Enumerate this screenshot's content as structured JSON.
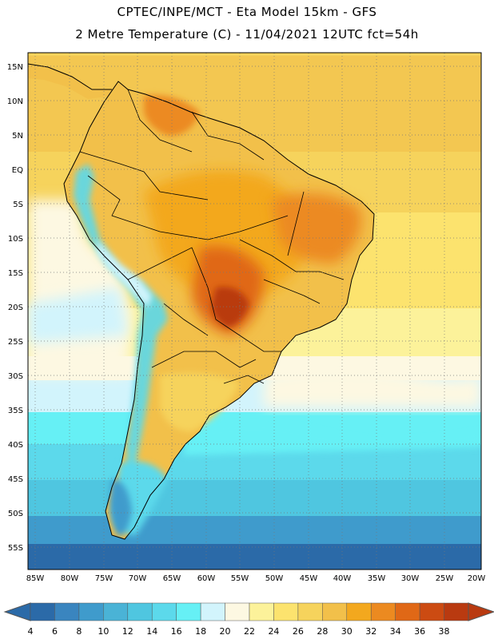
{
  "header": {
    "line1": "CPTEC/INPE/MCT -  Eta Model 15km - GFS",
    "line2": "2 Metre Temperature (C) - 11/04/2021 12UTC fct=54h"
  },
  "map": {
    "lat_labels": [
      "15N",
      "10N",
      "5N",
      "EQ",
      "5S",
      "10S",
      "15S",
      "20S",
      "25S",
      "30S",
      "35S",
      "40S",
      "45S",
      "50S",
      "55S"
    ],
    "lon_labels": [
      "85W",
      "80W",
      "75W",
      "70W",
      "65W",
      "60W",
      "55W",
      "50W",
      "45W",
      "40W",
      "35W",
      "30W",
      "25W",
      "20W"
    ],
    "lat_range": [
      17,
      -58
    ],
    "lon_range": [
      -86,
      -20
    ]
  },
  "colorbar": {
    "labels": [
      "4",
      "6",
      "8",
      "10",
      "12",
      "14",
      "16",
      "18",
      "20",
      "22",
      "24",
      "26",
      "28",
      "30",
      "32",
      "34",
      "36",
      "38"
    ],
    "colors": [
      "#2b6aa8",
      "#3a85bf",
      "#3f9bcc",
      "#4ab3d6",
      "#4fc6e0",
      "#5cd9eb",
      "#66f0f5",
      "#d2f4fc",
      "#fdf8e2",
      "#fcf29a",
      "#fce36e",
      "#f6d35c",
      "#f2c04a",
      "#f3a81e",
      "#ec8a20",
      "#e06816",
      "#cc4b12",
      "#b93a10"
    ]
  }
}
